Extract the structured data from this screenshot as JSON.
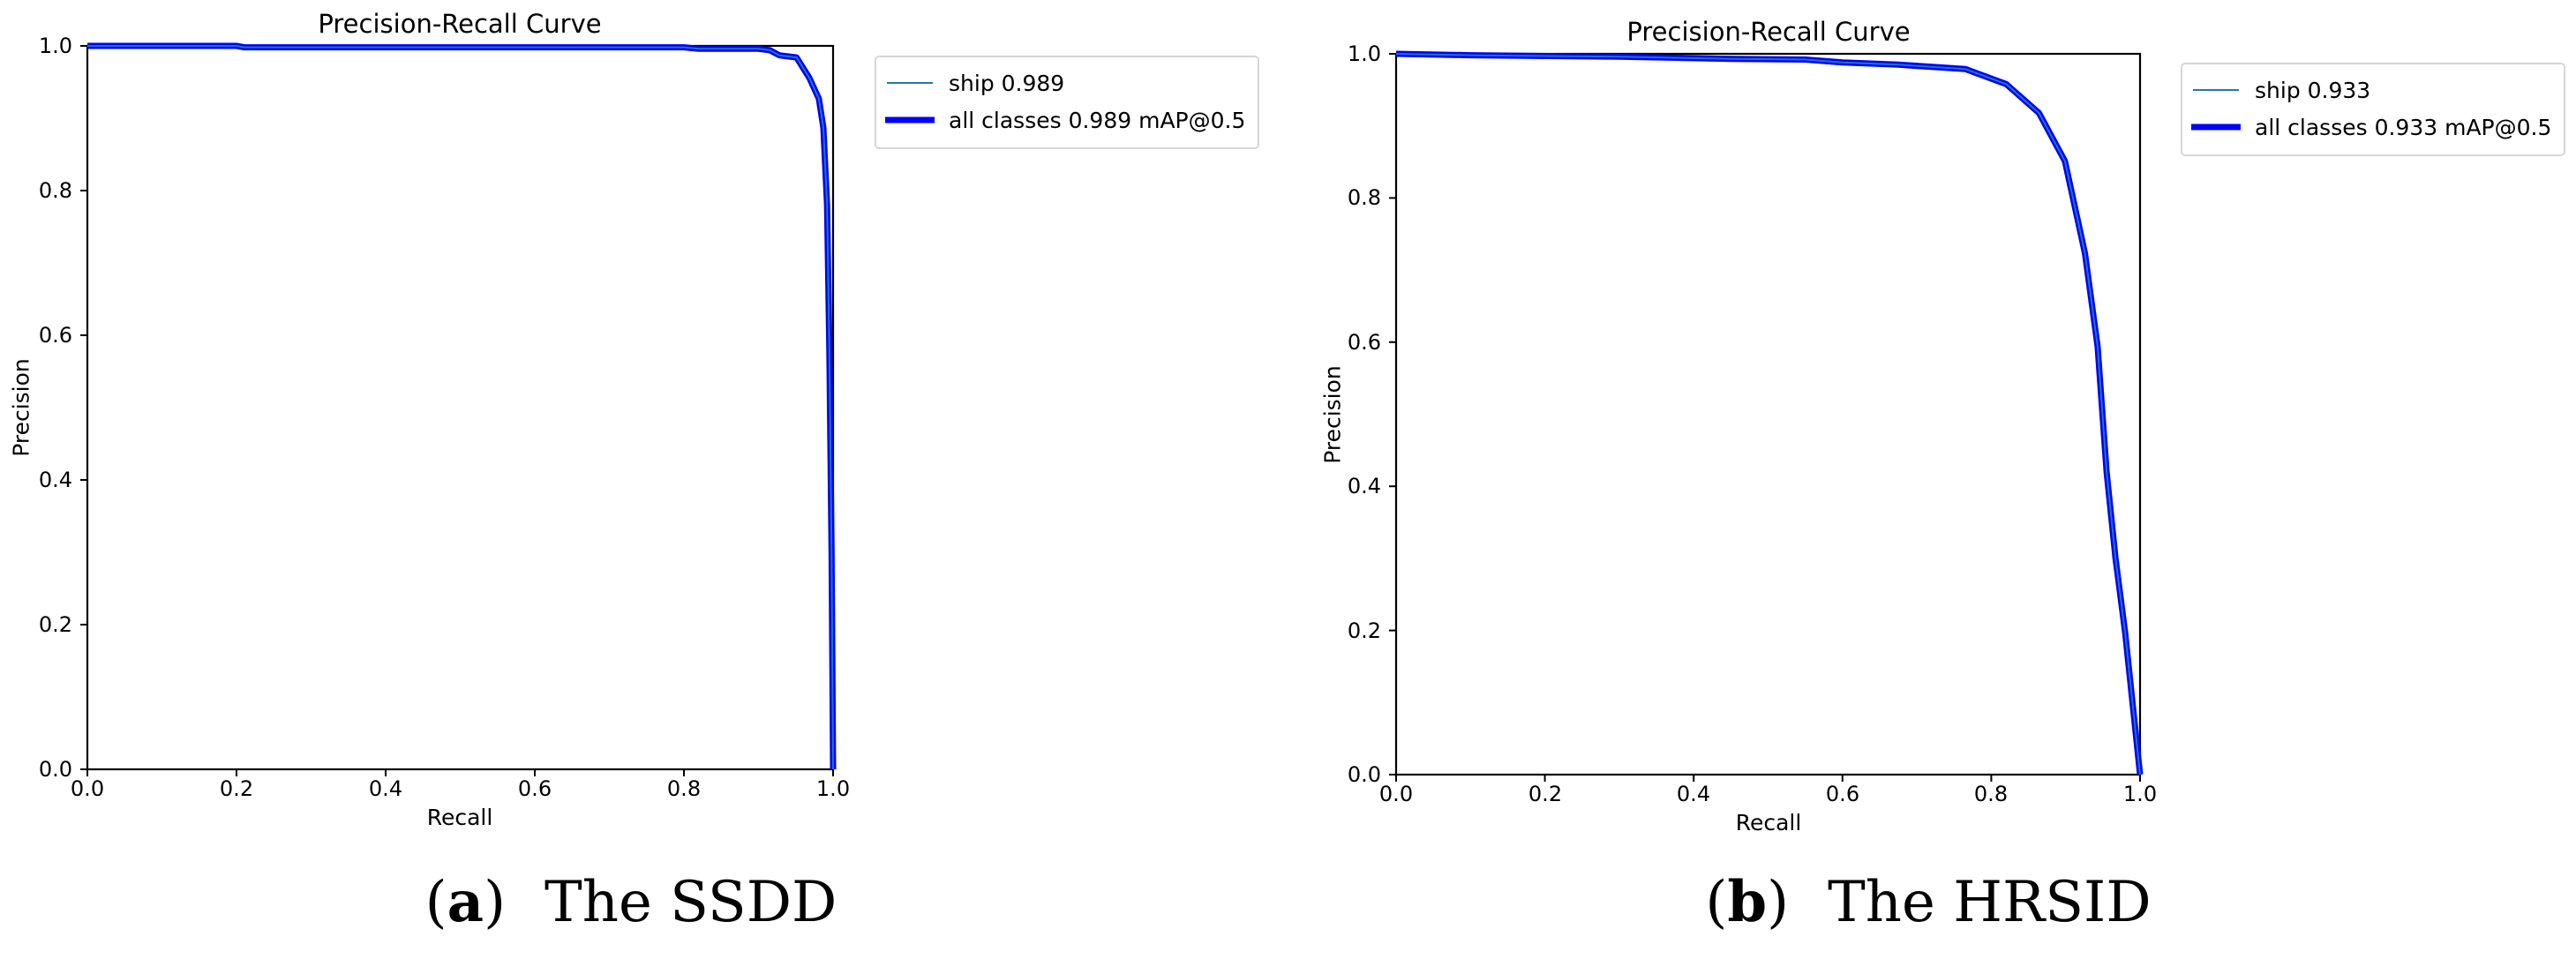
{
  "figures": [
    {
      "id": "a",
      "title": "Precision-Recall Curve",
      "xlabel": "Recall",
      "ylabel": "Precision",
      "x_ticks": [
        "0.0",
        "0.2",
        "0.4",
        "0.6",
        "0.8",
        "1.0"
      ],
      "y_ticks": [
        "0.0",
        "0.2",
        "0.4",
        "0.6",
        "0.8",
        "1.0"
      ],
      "legend": [
        {
          "label": "ship 0.989",
          "color": "#1f77b4",
          "width": 2
        },
        {
          "label": "all classes 0.989 mAP@0.5",
          "color": "#0000ff",
          "width": 6
        }
      ],
      "caption": {
        "letter": "a",
        "text": "The SSDD"
      }
    },
    {
      "id": "b",
      "title": "Precision-Recall Curve",
      "xlabel": "Recall",
      "ylabel": "Precision",
      "x_ticks": [
        "0.0",
        "0.2",
        "0.4",
        "0.6",
        "0.8",
        "1.0"
      ],
      "y_ticks": [
        "0.0",
        "0.2",
        "0.4",
        "0.6",
        "0.8",
        "1.0"
      ],
      "legend": [
        {
          "label": "ship 0.933",
          "color": "#1f77b4",
          "width": 2
        },
        {
          "label": "all classes 0.933 mAP@0.5",
          "color": "#0000ff",
          "width": 6
        }
      ],
      "caption": {
        "letter": "b",
        "text": "The HRSID"
      }
    }
  ],
  "chart_data": [
    {
      "type": "line",
      "title": "Precision-Recall Curve",
      "xlabel": "Recall",
      "ylabel": "Precision",
      "xlim": [
        0.0,
        1.0
      ],
      "ylim": [
        0.0,
        1.0
      ],
      "grid": false,
      "legend_position": "outside upper right",
      "series": [
        {
          "name": "ship 0.989",
          "ap": 0.989,
          "x": [
            0.0,
            0.2,
            0.21,
            0.8,
            0.82,
            0.9,
            0.915,
            0.928,
            0.951,
            0.968,
            0.981,
            0.987,
            0.992,
            0.995,
            0.998,
            1.0
          ],
          "y": [
            1.0,
            1.0,
            0.998,
            0.998,
            0.996,
            0.996,
            0.994,
            0.987,
            0.984,
            0.956,
            0.927,
            0.887,
            0.78,
            0.578,
            0.3,
            0.0
          ]
        },
        {
          "name": "all classes 0.989 mAP@0.5",
          "map50": 0.989,
          "x": [
            0.0,
            0.2,
            0.21,
            0.8,
            0.82,
            0.9,
            0.915,
            0.928,
            0.951,
            0.968,
            0.981,
            0.987,
            0.992,
            0.995,
            0.998,
            1.0
          ],
          "y": [
            1.0,
            1.0,
            0.998,
            0.998,
            0.996,
            0.996,
            0.994,
            0.987,
            0.984,
            0.956,
            0.927,
            0.887,
            0.78,
            0.578,
            0.3,
            0.0
          ]
        }
      ],
      "caption": "(a) The SSDD"
    },
    {
      "type": "line",
      "title": "Precision-Recall Curve",
      "xlabel": "Recall",
      "ylabel": "Precision",
      "xlim": [
        0.0,
        1.0
      ],
      "ylim": [
        0.0,
        1.0
      ],
      "grid": false,
      "legend_position": "outside upper right",
      "series": [
        {
          "name": "ship 0.933",
          "ap": 0.933,
          "x": [
            0.0,
            0.1,
            0.3,
            0.45,
            0.55,
            0.6,
            0.675,
            0.765,
            0.82,
            0.864,
            0.899,
            0.926,
            0.943,
            0.955,
            0.967,
            0.98,
            1.0
          ],
          "y": [
            1.0,
            0.998,
            0.996,
            0.993,
            0.992,
            0.988,
            0.985,
            0.979,
            0.958,
            0.918,
            0.851,
            0.723,
            0.594,
            0.42,
            0.3,
            0.197,
            0.0
          ]
        },
        {
          "name": "all classes 0.933 mAP@0.5",
          "map50": 0.933,
          "x": [
            0.0,
            0.1,
            0.3,
            0.45,
            0.55,
            0.6,
            0.675,
            0.765,
            0.82,
            0.864,
            0.899,
            0.926,
            0.943,
            0.955,
            0.967,
            0.98,
            1.0
          ],
          "y": [
            1.0,
            0.998,
            0.996,
            0.993,
            0.992,
            0.988,
            0.985,
            0.979,
            0.958,
            0.918,
            0.851,
            0.723,
            0.594,
            0.42,
            0.3,
            0.197,
            0.0
          ]
        }
      ],
      "caption": "(b) The HRSID"
    }
  ]
}
